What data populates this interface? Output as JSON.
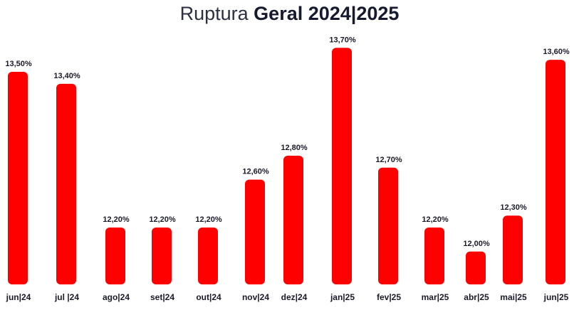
{
  "chart_data": {
    "type": "bar",
    "title_light": "Ruptura",
    "title_bold": "Geral 2024|2025",
    "categories": [
      "jun|24",
      "jul |24",
      "ago|24",
      "set|24",
      "out|24",
      "nov|24",
      "dez|24",
      "jan|25",
      "fev|25",
      "mar|25",
      "abr|25",
      "mai|25",
      "jun|25"
    ],
    "values": [
      13.5,
      13.4,
      12.2,
      12.2,
      12.2,
      12.6,
      12.8,
      13.7,
      12.7,
      12.2,
      12.0,
      12.3,
      13.6
    ],
    "data_labels": [
      "13,50%",
      "13,40%",
      "12,20%",
      "12,20%",
      "12,20%",
      "12,60%",
      "12,80%",
      "13,70%",
      "12,70%",
      "12,20%",
      "12,00%",
      "12,30%",
      "13,60%"
    ],
    "colors": {
      "bar": "#ff0000",
      "text": "#1a1a2a"
    },
    "grid": false,
    "legend": "none"
  }
}
